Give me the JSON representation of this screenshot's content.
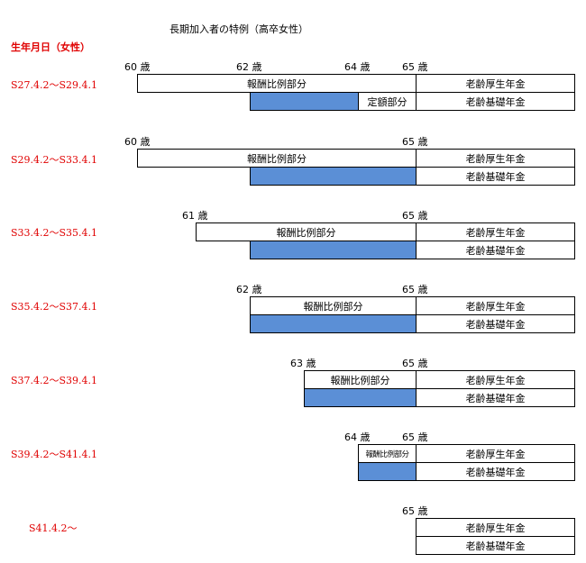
{
  "title": "長期加入者の特例（高卒女性）",
  "header": "生年月日（女性）",
  "labels": {
    "hirei": "報酬比例部分",
    "teigaku": "定額部分",
    "kosei": "老齢厚生年金",
    "kiso": "老齢基礎年金"
  },
  "groups": [
    {
      "range": "S27.4.2～S29.4.1",
      "ages": [
        "60 歳",
        "62 歳",
        "64 歳",
        "65 歳"
      ]
    },
    {
      "range": "S29.4.2～S33.4.1",
      "ages": [
        "60 歳",
        "65 歳"
      ]
    },
    {
      "range": "S33.4.2～S35.4.1",
      "ages": [
        "61 歳",
        "65 歳"
      ]
    },
    {
      "range": "S35.4.2～S37.4.1",
      "ages": [
        "62 歳",
        "65 歳"
      ]
    },
    {
      "range": "S37.4.2～S39.4.1",
      "ages": [
        "63 歳",
        "65 歳"
      ]
    },
    {
      "range": "S39.4.2～S41.4.1",
      "ages": [
        "64 歳",
        "65 歳"
      ]
    },
    {
      "range": "S41.4.2～",
      "ages": [
        "65 歳"
      ]
    }
  ]
}
